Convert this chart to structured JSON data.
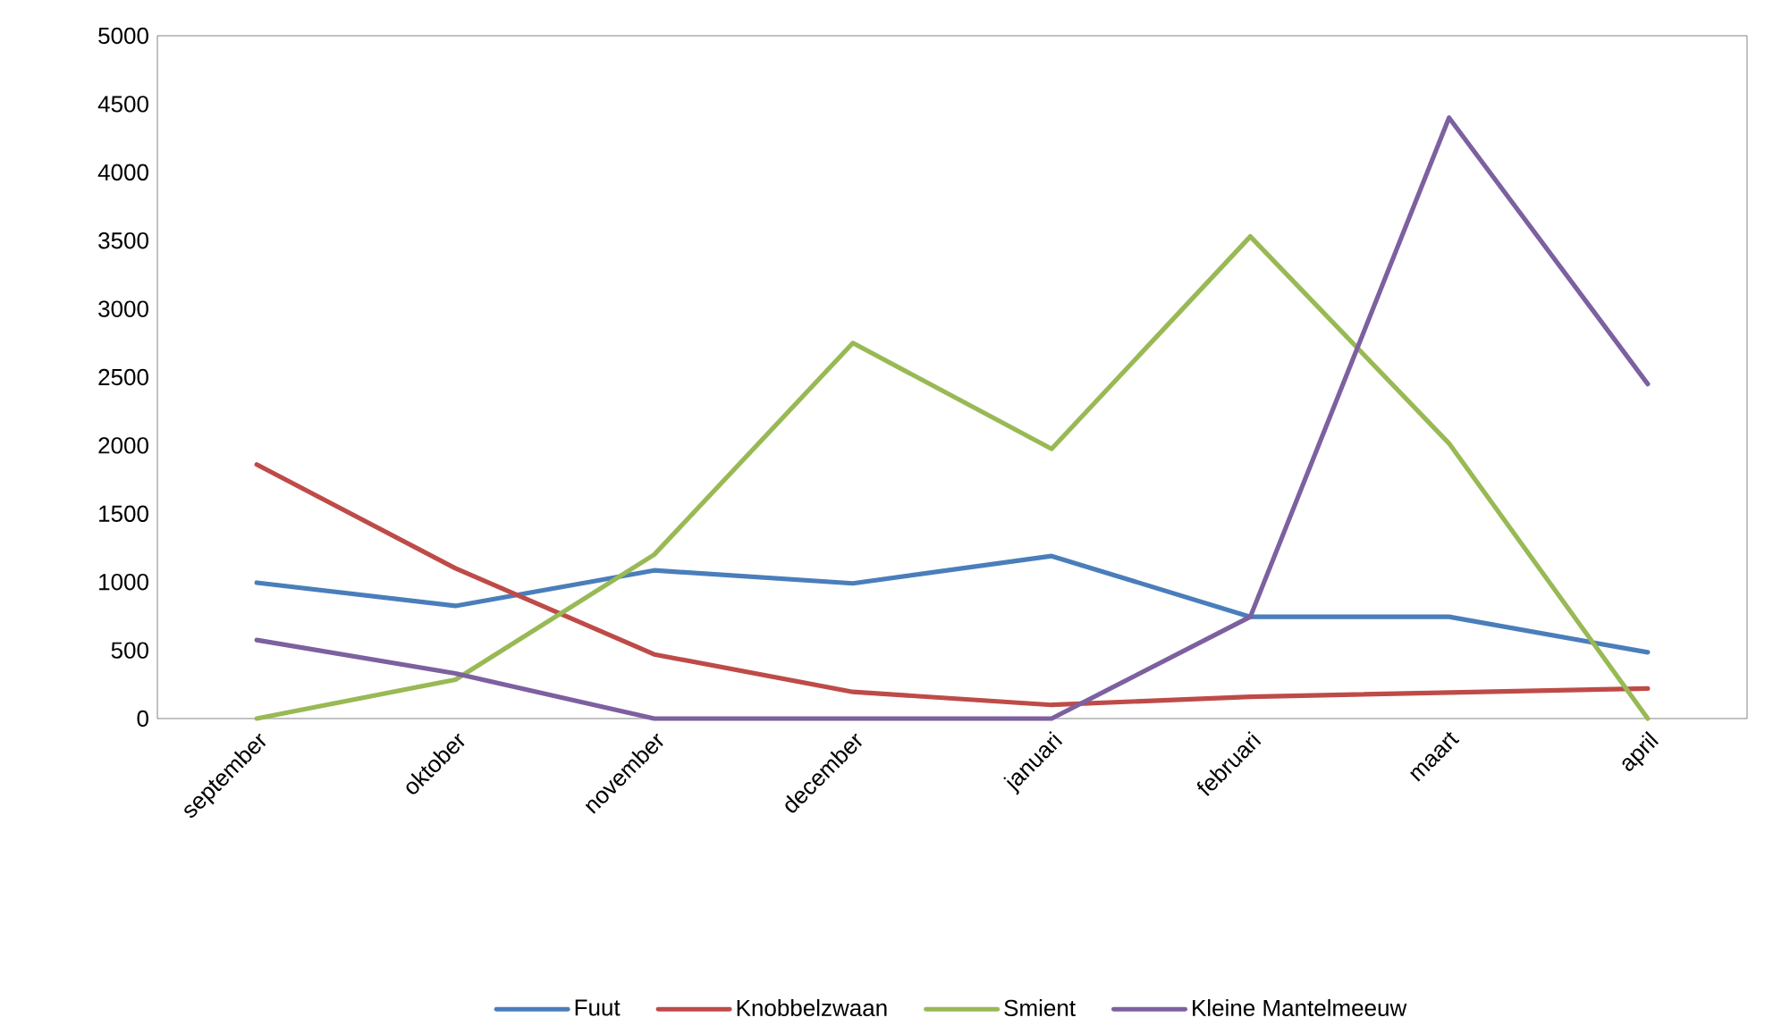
{
  "chart_data": {
    "type": "line",
    "categories": [
      "september",
      "oktober",
      "november",
      "december",
      "januari",
      "februari",
      "maart",
      "april"
    ],
    "series": [
      {
        "name": "Fuut",
        "color": "#4a7ebb",
        "values": [
          995,
          825,
          1085,
          990,
          1190,
          745,
          745,
          485
        ]
      },
      {
        "name": "Knobbelzwaan",
        "color": "#be4b48",
        "values": [
          1860,
          1100,
          470,
          195,
          100,
          160,
          190,
          220
        ]
      },
      {
        "name": "Smient",
        "color": "#98b954",
        "values": [
          0,
          285,
          1200,
          2750,
          1975,
          3530,
          2015,
          0
        ]
      },
      {
        "name": "Kleine Mantelmeeuw",
        "color": "#7d60a0",
        "values": [
          575,
          330,
          0,
          0,
          0,
          745,
          4400,
          2450
        ]
      }
    ],
    "ylim": [
      0,
      5000
    ],
    "yticks": [
      0,
      500,
      1000,
      1500,
      2000,
      2500,
      3000,
      3500,
      4000,
      4500,
      5000
    ],
    "legend": "bottom",
    "marker": "none",
    "line_style": "solid"
  }
}
